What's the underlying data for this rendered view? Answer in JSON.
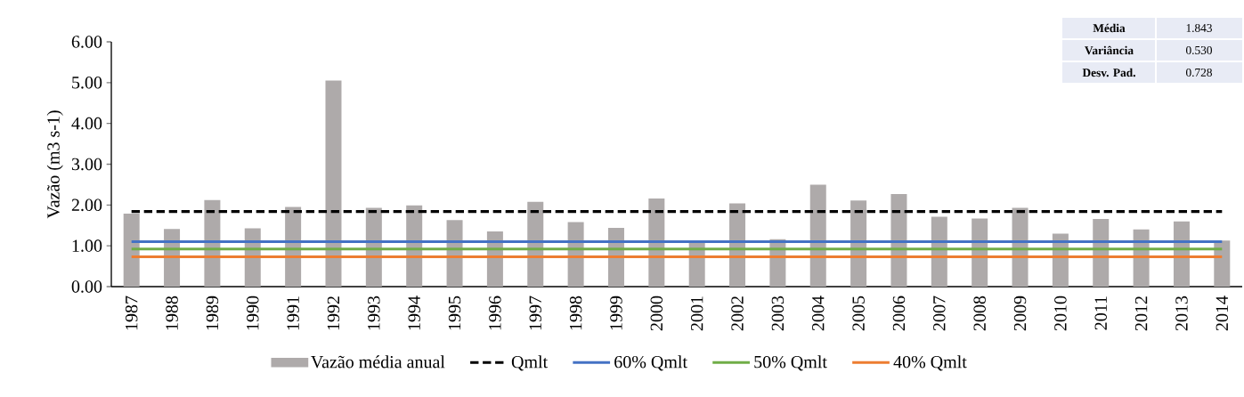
{
  "chart_data": {
    "type": "bar",
    "ylabel": "Vazão (m3 s-1)",
    "categories": [
      "1987",
      "1988",
      "1989",
      "1990",
      "1991",
      "1992",
      "1993",
      "1994",
      "1995",
      "1996",
      "1997",
      "1998",
      "1999",
      "2000",
      "2001",
      "2002",
      "2003",
      "2004",
      "2005",
      "2006",
      "2007",
      "2008",
      "2009",
      "2010",
      "2011",
      "2012",
      "2013",
      "2014"
    ],
    "series": [
      {
        "name": "Vazão média anual",
        "color": "#aeaaaa",
        "values": [
          1.79,
          1.41,
          2.12,
          1.43,
          1.95,
          5.05,
          1.93,
          1.99,
          1.63,
          1.35,
          2.08,
          1.58,
          1.44,
          2.16,
          1.1,
          2.04,
          1.16,
          2.5,
          2.11,
          2.27,
          1.71,
          1.67,
          1.93,
          1.3,
          1.66,
          1.4,
          1.6,
          1.13
        ]
      },
      {
        "name": "Qmlt",
        "type": "line",
        "color": "#000000",
        "line_style": "dashed",
        "values": [
          1.84,
          1.84,
          1.84,
          1.84,
          1.84,
          1.84,
          1.84,
          1.84,
          1.84,
          1.84,
          1.84,
          1.84,
          1.84,
          1.84,
          1.84,
          1.84,
          1.84,
          1.84,
          1.84,
          1.84,
          1.84,
          1.84,
          1.84,
          1.84,
          1.84,
          1.84,
          1.84,
          1.84
        ]
      },
      {
        "name": "60% Qmlt",
        "type": "line",
        "color": "#4472c4",
        "line_style": "solid",
        "values": [
          1.1,
          1.1,
          1.1,
          1.1,
          1.1,
          1.1,
          1.1,
          1.1,
          1.1,
          1.1,
          1.1,
          1.1,
          1.1,
          1.1,
          1.1,
          1.1,
          1.1,
          1.1,
          1.1,
          1.1,
          1.1,
          1.1,
          1.1,
          1.1,
          1.1,
          1.1,
          1.1,
          1.1
        ]
      },
      {
        "name": "50% Qmlt",
        "type": "line",
        "color": "#70ad47",
        "line_style": "solid",
        "values": [
          0.92,
          0.92,
          0.92,
          0.92,
          0.92,
          0.92,
          0.92,
          0.92,
          0.92,
          0.92,
          0.92,
          0.92,
          0.92,
          0.92,
          0.92,
          0.92,
          0.92,
          0.92,
          0.92,
          0.92,
          0.92,
          0.92,
          0.92,
          0.92,
          0.92,
          0.92,
          0.92,
          0.92
        ]
      },
      {
        "name": "40% Qmlt",
        "type": "line",
        "color": "#ed7d31",
        "line_style": "solid",
        "values": [
          0.73,
          0.73,
          0.73,
          0.73,
          0.73,
          0.73,
          0.73,
          0.73,
          0.73,
          0.73,
          0.73,
          0.73,
          0.73,
          0.73,
          0.73,
          0.73,
          0.73,
          0.73,
          0.73,
          0.73,
          0.73,
          0.73,
          0.73,
          0.73,
          0.73,
          0.73,
          0.73,
          0.73
        ]
      }
    ],
    "ylim": [
      0,
      6
    ],
    "yticks": [
      {
        "value": 0,
        "label": "0.00"
      },
      {
        "value": 1,
        "label": "1.00"
      },
      {
        "value": 2,
        "label": "2.00"
      },
      {
        "value": 3,
        "label": "3.00"
      },
      {
        "value": 4,
        "label": "4.00"
      },
      {
        "value": 5,
        "label": "5.00"
      },
      {
        "value": 6,
        "label": "6.00"
      }
    ],
    "grid": false,
    "legend": "bottom",
    "annotations": [
      "Média",
      "1.843",
      "Variância",
      "0.530",
      "Desv. Pad.",
      "0.728"
    ]
  }
}
